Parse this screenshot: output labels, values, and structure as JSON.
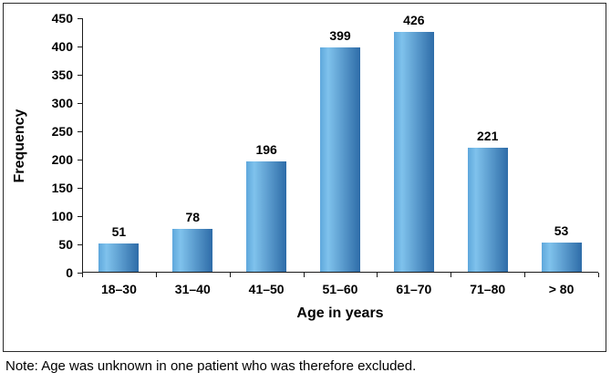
{
  "chart_data": {
    "type": "bar",
    "categories": [
      "18–30",
      "31–40",
      "41–50",
      "51–60",
      "61–70",
      "71–80",
      "> 80"
    ],
    "values": [
      51,
      78,
      196,
      399,
      426,
      221,
      53
    ],
    "title": "",
    "xlabel": "Age in years",
    "ylabel": "Frequency",
    "ylim": [
      0,
      450
    ],
    "ytick_step": 50,
    "grid": false,
    "legend": false,
    "bar_gradient": [
      "#5ea7dc",
      "#7fc2ec",
      "#2e6ca8"
    ],
    "axis_color": "#1a1a1a"
  },
  "note": "Note: Age was unknown in one patient who was therefore excluded."
}
